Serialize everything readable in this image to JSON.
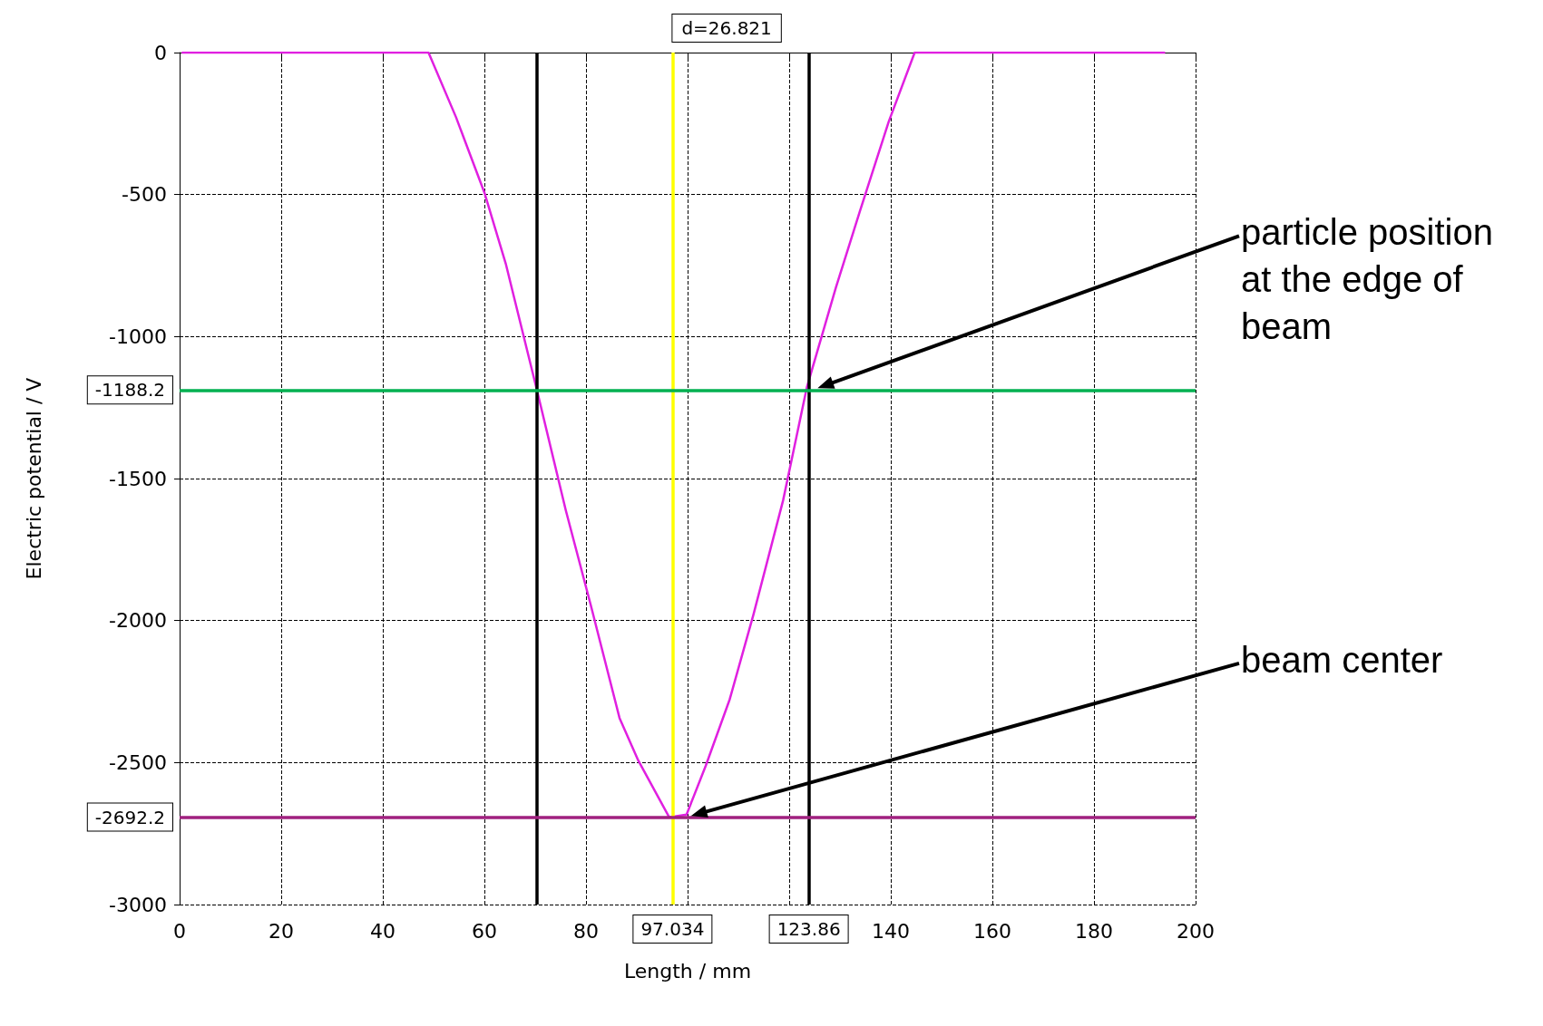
{
  "chart_data": {
    "type": "line",
    "xlabel": "Length / mm",
    "ylabel": "Electric potential / V",
    "x": [
      0.4,
      49,
      54.4,
      60,
      64.2,
      70.4,
      76,
      80.9,
      86.6,
      90.3,
      96.4,
      99.8,
      103.6,
      108.3,
      113,
      118.8,
      123.5,
      129.2,
      133.9,
      139.6,
      144.7,
      194
    ],
    "series": [
      {
        "color": "#e020e0",
        "values": [
          0,
          0,
          -227,
          -493,
          -743,
          -1193,
          -1610,
          -1943,
          -2343,
          -2493,
          -2693,
          -2683,
          -2510,
          -2277,
          -1977,
          -1577,
          -1177,
          -827,
          -560,
          -243,
          0,
          0
        ]
      }
    ],
    "xlim": [
      0,
      200
    ],
    "xticks": [
      0,
      20,
      40,
      60,
      80,
      {
        "value": 100,
        "label": null
      },
      {
        "value": 120,
        "label": null
      },
      140,
      160,
      180,
      200
    ],
    "ylim": [
      -3000,
      0
    ],
    "yticks": [
      -3000,
      -2500,
      -2000,
      -1500,
      -1000,
      -500,
      0
    ],
    "grid": true,
    "marker": "none",
    "line_style": "solid",
    "ref_lines": [
      {
        "axis": "x",
        "value": 70.4,
        "color": "#000000"
      },
      {
        "axis": "x",
        "value": 97.034,
        "label": "97.034",
        "color": "#ffff00"
      },
      {
        "axis": "x",
        "value": 123.86,
        "label": "123.86",
        "color": "#000000"
      },
      {
        "axis": "y",
        "value": -1188.2,
        "label": "-1188.2",
        "color": "#00b050"
      },
      {
        "axis": "y",
        "value": -2692.2,
        "label": "-2692.2",
        "color": "#a0207f"
      }
    ],
    "annotations": [
      "d=26.821",
      "particle position at the edge of beam",
      "beam center"
    ]
  }
}
